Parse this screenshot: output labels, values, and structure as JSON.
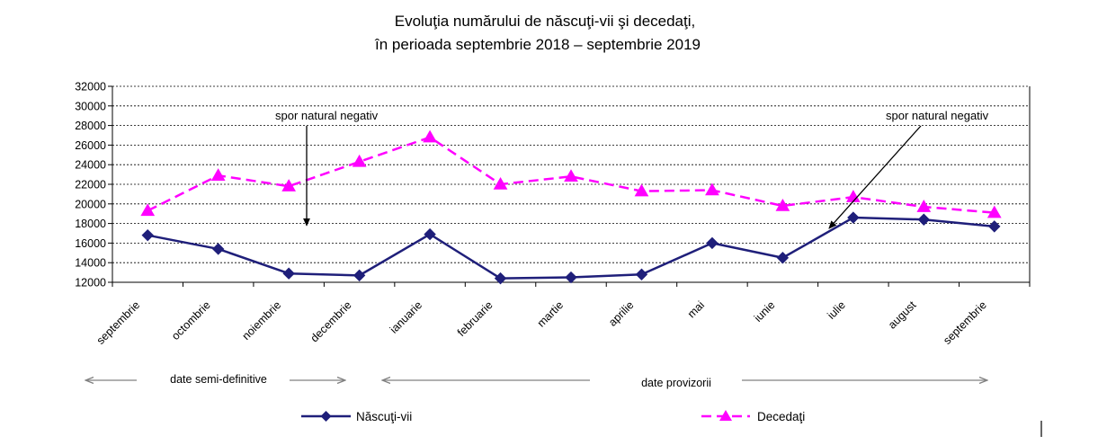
{
  "chart_data": {
    "type": "line",
    "title": "Evoluţia numărului de născuţi-vii şi decedaţi,",
    "subtitle": "în perioada septembrie 2018 – septembrie 2019",
    "categories": [
      "septembrie",
      "octombrie",
      "noiembrie",
      "decembrie",
      "ianuarie",
      "februarie",
      "martie",
      "aprilie",
      "mai",
      "iunie",
      "iulie",
      "august",
      "septembrie"
    ],
    "ylim": [
      12000,
      32000
    ],
    "yticks": [
      12000,
      14000,
      16000,
      18000,
      20000,
      22000,
      24000,
      26000,
      28000,
      30000,
      32000
    ],
    "grid": true,
    "legend_position": "bottom",
    "series": [
      {
        "name": "Născuţi-vii",
        "color": "#1f1f7a",
        "marker": "diamond",
        "line_style": "solid",
        "values": [
          16800,
          15400,
          12900,
          12700,
          16900,
          12400,
          12500,
          12800,
          16000,
          14500,
          18600,
          18400,
          17700
        ]
      },
      {
        "name": "Decedaţi",
        "color": "#ff00ff",
        "marker": "triangle",
        "line_style": "dashed",
        "values": [
          19300,
          22900,
          21800,
          24300,
          26800,
          22000,
          22800,
          21300,
          21400,
          19800,
          20700,
          19700,
          19100
        ]
      }
    ],
    "annotations": [
      {
        "text": "spor natural negativ",
        "target_category": "decembrie",
        "target_value": 17800
      },
      {
        "text": "spor natural negativ",
        "target_category": "iulie",
        "target_value": 18700
      }
    ],
    "periods": [
      {
        "label": "date semi-definitive",
        "from": "septembrie",
        "to": "decembrie"
      },
      {
        "label": "date provizorii",
        "from": "ianuarie",
        "to": "septembrie"
      }
    ]
  }
}
